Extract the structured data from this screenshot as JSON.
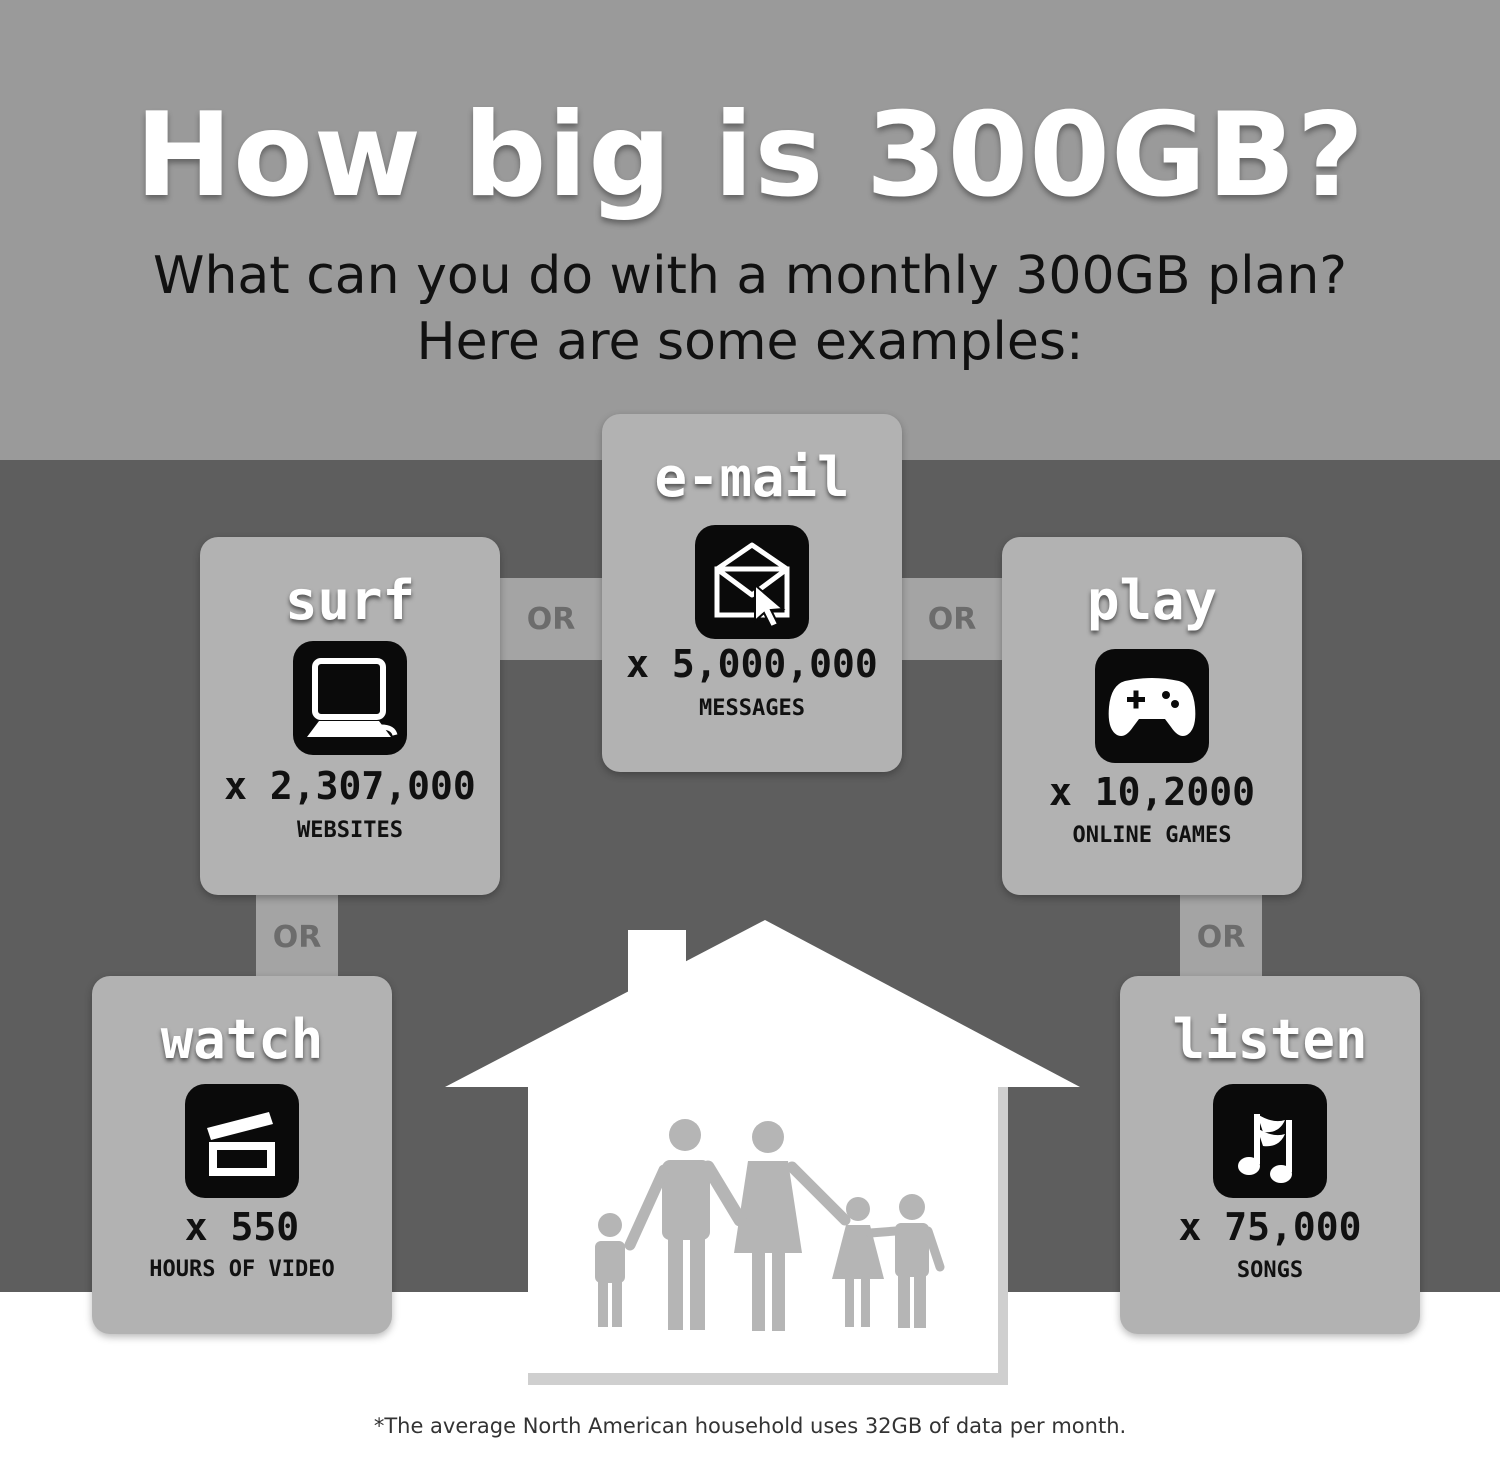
{
  "header": {
    "title": "How big is 300GB?",
    "subtitle_line1": "What can you do with a monthly 300GB plan?",
    "subtitle_line2": "Here are some examples:"
  },
  "connector_label": "OR",
  "cards": {
    "surf": {
      "title": "surf",
      "count": "x 2,307,000",
      "unit": "WEBSITES",
      "icon": "laptop-icon"
    },
    "email": {
      "title": "e-mail",
      "count": "x 5,000,000",
      "unit": "MESSAGES",
      "icon": "envelope-icon"
    },
    "play": {
      "title": "play",
      "count": "x 10,2000",
      "unit": "ONLINE GAMES",
      "icon": "gamepad-icon"
    },
    "watch": {
      "title": "watch",
      "count": "x 550",
      "unit": "HOURS OF VIDEO",
      "icon": "clapperboard-icon"
    },
    "listen": {
      "title": "listen",
      "count": "x 75,000",
      "unit": "SONGS",
      "icon": "music-note-icon"
    }
  },
  "house_illustration": "family-house-icon",
  "footnote": "*The average North American household uses 32GB of data per month.",
  "colors": {
    "top_band": "#9a9a9a",
    "middle_band": "#5e5e5e",
    "card": "#b2b2b2",
    "icon_tile": "#0a0a0a",
    "house": "#ffffff",
    "family": "#b5b5b5"
  }
}
